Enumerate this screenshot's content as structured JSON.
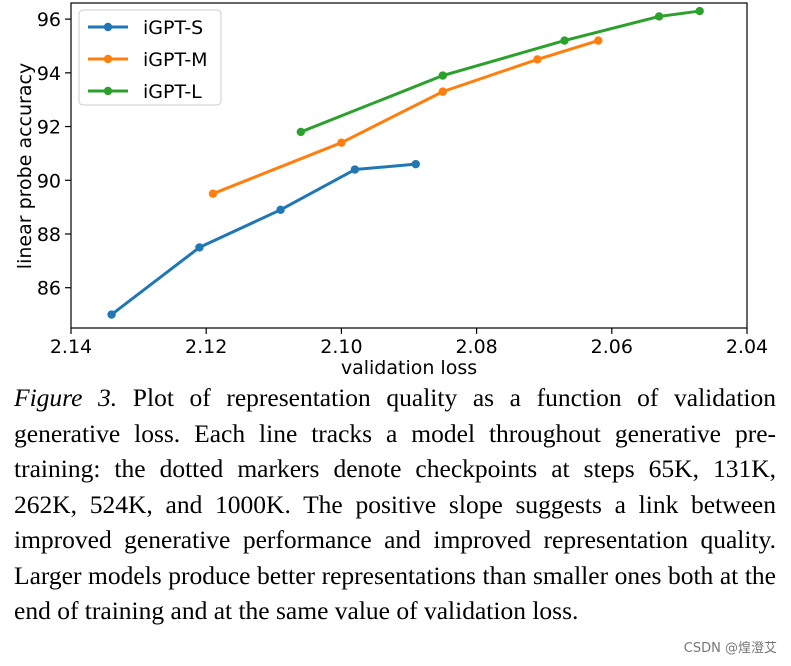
{
  "chart_data": {
    "type": "line",
    "title": "",
    "xlabel": "validation loss",
    "ylabel": "linear probe accuracy",
    "xlim": [
      2.14,
      2.04
    ],
    "ylim": [
      84.5,
      96.6
    ],
    "x_reversed": true,
    "xticks": [
      2.14,
      2.12,
      2.1,
      2.08,
      2.06,
      2.04
    ],
    "xtick_labels": [
      "2.14",
      "2.12",
      "2.10",
      "2.08",
      "2.06",
      "2.04"
    ],
    "yticks": [
      86,
      88,
      90,
      92,
      94,
      96
    ],
    "ytick_labels": [
      "86",
      "88",
      "90",
      "92",
      "94",
      "96"
    ],
    "grid": false,
    "legend_position": "top-left",
    "series": [
      {
        "name": "iGPT-S",
        "color": "#1f77b4",
        "x": [
          2.134,
          2.121,
          2.109,
          2.098,
          2.089
        ],
        "y": [
          85.0,
          87.5,
          88.9,
          90.4,
          90.6
        ]
      },
      {
        "name": "iGPT-M",
        "color": "#ff7f0e",
        "x": [
          2.119,
          2.1,
          2.085,
          2.071,
          2.062
        ],
        "y": [
          89.5,
          91.4,
          93.3,
          94.5,
          95.2
        ]
      },
      {
        "name": "iGPT-L",
        "color": "#2ca02c",
        "x": [
          2.106,
          2.085,
          2.067,
          2.053,
          2.047
        ],
        "y": [
          91.8,
          93.9,
          95.2,
          96.1,
          96.3
        ]
      }
    ]
  },
  "caption": {
    "figure_label": "Figure 3.",
    "text": "Plot of representation quality as a function of validation generative loss. Each line tracks a model throughout generative pre-training: the dotted markers denote checkpoints at steps 65K, 131K, 262K, 524K, and 1000K. The positive slope suggests a link between improved generative performance and improved representation quality. Larger models produce better representations than smaller ones both at the end of training and at the same value of validation loss."
  },
  "watermark": "CSDN @煌澄艾"
}
